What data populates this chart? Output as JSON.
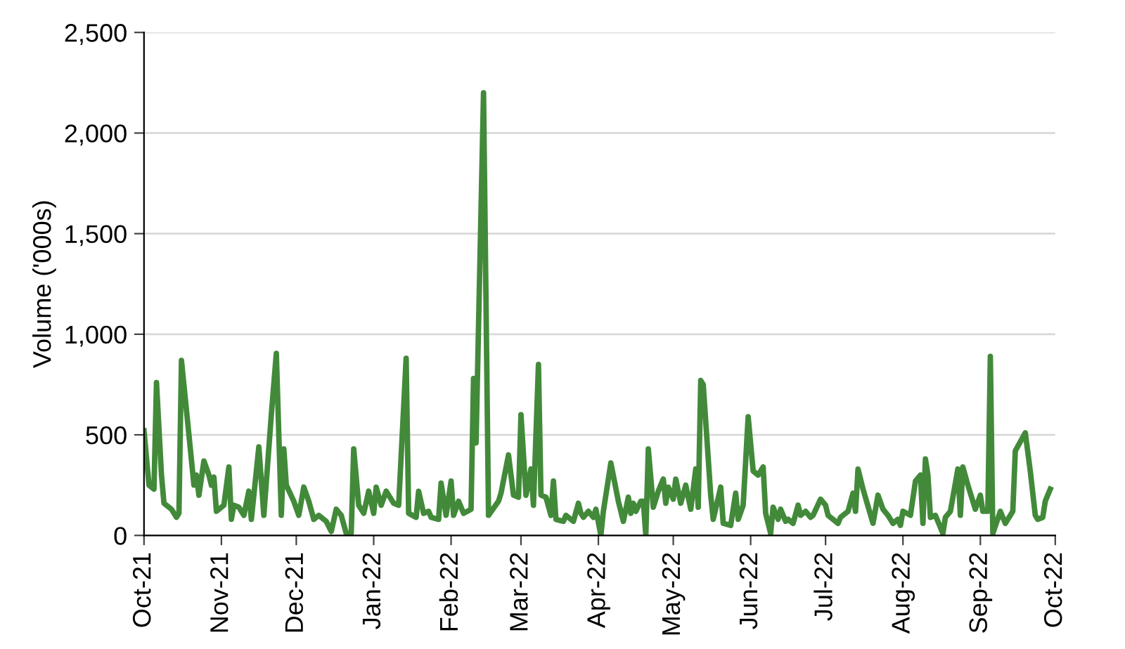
{
  "chart_data": {
    "type": "line",
    "ylabel": "Volume ('000s)",
    "xlim": [
      "2021-10-01",
      "2022-10-01"
    ],
    "ylim": [
      0,
      2500
    ],
    "xticks": [
      {
        "value": "2021-10-01",
        "label": "Oct-21"
      },
      {
        "value": "2021-11-01",
        "label": "Nov-21"
      },
      {
        "value": "2021-12-01",
        "label": "Dec-21"
      },
      {
        "value": "2022-01-01",
        "label": "Jan-22"
      },
      {
        "value": "2022-02-01",
        "label": "Feb-22"
      },
      {
        "value": "2022-03-01",
        "label": "Mar-22"
      },
      {
        "value": "2022-04-01",
        "label": "Apr-22"
      },
      {
        "value": "2022-05-01",
        "label": "May-22"
      },
      {
        "value": "2022-06-01",
        "label": "Jun-22"
      },
      {
        "value": "2022-07-01",
        "label": "Jul-22"
      },
      {
        "value": "2022-08-01",
        "label": "Aug-22"
      },
      {
        "value": "2022-09-01",
        "label": "Sep-22"
      },
      {
        "value": "2022-10-01",
        "label": "Oct-22"
      }
    ],
    "yticks": [
      0,
      {
        "value": 500,
        "label": "500"
      },
      {
        "value": 1000,
        "label": "1,000"
      },
      {
        "value": 1500,
        "label": "1,500"
      },
      {
        "value": 2000,
        "label": "2,000"
      },
      {
        "value": 2500,
        "label": "2,500"
      }
    ],
    "grid": "y",
    "marker": "none",
    "line_style": "solid",
    "x": [
      "2021-10-01",
      "2021-10-03",
      "2021-10-05",
      "2021-10-06",
      "2021-10-08",
      "2021-10-09",
      "2021-10-12",
      "2021-10-14",
      "2021-10-15",
      "2021-10-16",
      "2021-10-19",
      "2021-10-21",
      "2021-10-22",
      "2021-10-23",
      "2021-10-25",
      "2021-10-27",
      "2021-10-28",
      "2021-10-29",
      "2021-10-30",
      "2021-11-02",
      "2021-11-04",
      "2021-11-05",
      "2021-11-06",
      "2021-11-08",
      "2021-11-10",
      "2021-11-12",
      "2021-11-13",
      "2021-11-16",
      "2021-11-18",
      "2021-11-21",
      "2021-11-23",
      "2021-11-25",
      "2021-11-26",
      "2021-11-27",
      "2021-11-30",
      "2021-12-02",
      "2021-12-04",
      "2021-12-06",
      "2021-12-08",
      "2021-12-10",
      "2021-12-13",
      "2021-12-15",
      "2021-12-17",
      "2021-12-19",
      "2021-12-21",
      "2021-12-23",
      "2021-12-24",
      "2021-12-26",
      "2021-12-28",
      "2021-12-30",
      "2022-01-01",
      "2022-01-02",
      "2022-01-04",
      "2022-01-06",
      "2022-01-07",
      "2022-01-09",
      "2022-01-11",
      "2022-01-14",
      "2022-01-15",
      "2022-01-18",
      "2022-01-19",
      "2022-01-21",
      "2022-01-23",
      "2022-01-24",
      "2022-01-27",
      "2022-01-28",
      "2022-01-30",
      "2022-02-01",
      "2022-02-02",
      "2022-02-04",
      "2022-02-06",
      "2022-02-09",
      "2022-02-10",
      "2022-02-11",
      "2022-02-14",
      "2022-02-16",
      "2022-02-20",
      "2022-02-21",
      "2022-02-24",
      "2022-02-26",
      "2022-02-28",
      "2022-03-01",
      "2022-03-03",
      "2022-03-05",
      "2022-03-06",
      "2022-03-08",
      "2022-03-09",
      "2022-03-11",
      "2022-03-13",
      "2022-03-14",
      "2022-03-15",
      "2022-03-18",
      "2022-03-19",
      "2022-03-22",
      "2022-03-24",
      "2022-03-25",
      "2022-03-26",
      "2022-03-28",
      "2022-03-30",
      "2022-03-31",
      "2022-04-02",
      "2022-04-03",
      "2022-04-06",
      "2022-04-09",
      "2022-04-11",
      "2022-04-13",
      "2022-04-14",
      "2022-04-15",
      "2022-04-16",
      "2022-04-18",
      "2022-04-19",
      "2022-04-20",
      "2022-04-21",
      "2022-04-23",
      "2022-04-25",
      "2022-04-27",
      "2022-04-28",
      "2022-04-29",
      "2022-05-01",
      "2022-05-02",
      "2022-05-04",
      "2022-05-06",
      "2022-05-08",
      "2022-05-10",
      "2022-05-11",
      "2022-05-12",
      "2022-05-13",
      "2022-05-16",
      "2022-05-17",
      "2022-05-20",
      "2022-05-21",
      "2022-05-24",
      "2022-05-26",
      "2022-05-27",
      "2022-05-29",
      "2022-05-31",
      "2022-06-02",
      "2022-06-04",
      "2022-06-06",
      "2022-06-07",
      "2022-06-09",
      "2022-06-10",
      "2022-06-12",
      "2022-06-13",
      "2022-06-15",
      "2022-06-16",
      "2022-06-18",
      "2022-06-20",
      "2022-06-21",
      "2022-06-23",
      "2022-06-25",
      "2022-06-26",
      "2022-06-29",
      "2022-07-01",
      "2022-07-02",
      "2022-07-06",
      "2022-07-07",
      "2022-07-10",
      "2022-07-12",
      "2022-07-13",
      "2022-07-14",
      "2022-07-16",
      "2022-07-20",
      "2022-07-22",
      "2022-07-24",
      "2022-07-26",
      "2022-07-28",
      "2022-07-30",
      "2022-07-31",
      "2022-08-01",
      "2022-08-04",
      "2022-08-06",
      "2022-08-08",
      "2022-08-09",
      "2022-08-10",
      "2022-08-11",
      "2022-08-12",
      "2022-08-14",
      "2022-08-17",
      "2022-08-18",
      "2022-08-20",
      "2022-08-23",
      "2022-08-24",
      "2022-08-25",
      "2022-08-27",
      "2022-08-30",
      "2022-09-01",
      "2022-09-02",
      "2022-09-04",
      "2022-09-05",
      "2022-09-06",
      "2022-09-09",
      "2022-09-11",
      "2022-09-14",
      "2022-09-15",
      "2022-09-19",
      "2022-09-21",
      "2022-09-23",
      "2022-09-24",
      "2022-09-26",
      "2022-09-27",
      "2022-09-29"
    ],
    "series": [
      {
        "color": "#428a3a",
        "values": [
          520,
          250,
          230,
          760,
          300,
          160,
          130,
          90,
          110,
          870,
          500,
          250,
          300,
          200,
          370,
          300,
          250,
          290,
          120,
          150,
          340,
          80,
          150,
          140,
          100,
          220,
          80,
          440,
          100,
          600,
          905,
          100,
          430,
          250,
          170,
          100,
          240,
          170,
          80,
          100,
          70,
          20,
          130,
          100,
          10,
          10,
          430,
          150,
          110,
          220,
          110,
          240,
          150,
          220,
          200,
          160,
          150,
          880,
          110,
          90,
          220,
          110,
          120,
          90,
          80,
          260,
          100,
          270,
          100,
          170,
          110,
          130,
          780,
          460,
          2200,
          100,
          170,
          210,
          400,
          200,
          190,
          600,
          200,
          330,
          150,
          850,
          200,
          190,
          100,
          270,
          80,
          70,
          100,
          70,
          160,
          110,
          90,
          120,
          90,
          130,
          0,
          120,
          360,
          170,
          70,
          190,
          110,
          160,
          120,
          170,
          170,
          0,
          430,
          140,
          220,
          280,
          160,
          240,
          180,
          280,
          160,
          250,
          130,
          330,
          140,
          770,
          750,
          200,
          80,
          240,
          60,
          50,
          210,
          80,
          150,
          590,
          320,
          300,
          340,
          110,
          10,
          140,
          80,
          130,
          70,
          80,
          60,
          150,
          100,
          120,
          90,
          100,
          180,
          150,
          100,
          60,
          90,
          120,
          210,
          120,
          330,
          230,
          60,
          200,
          130,
          100,
          60,
          80,
          50,
          120,
          100,
          270,
          300,
          60,
          380,
          300,
          90,
          100,
          10,
          90,
          120,
          330,
          100,
          340,
          250,
          130,
          200,
          120,
          120,
          890,
          10,
          120,
          60,
          120,
          420,
          510,
          320,
          100,
          80,
          90,
          170,
          230
        ]
      }
    ]
  }
}
